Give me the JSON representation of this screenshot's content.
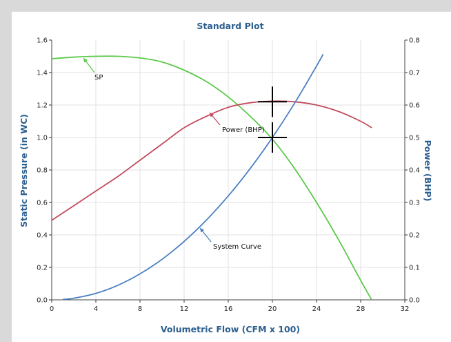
{
  "chart_data": {
    "type": "line",
    "title": "Standard Plot",
    "xlabel": "Volumetric Flow (CFM x 100)",
    "ylabel": "Static Pressure (in WC)",
    "y2label": "Power (BHP)",
    "xlim": [
      0,
      32
    ],
    "ylim": [
      0,
      1.6
    ],
    "y2lim": [
      0,
      0.8
    ],
    "x_ticks": [
      0,
      4,
      8,
      12,
      16,
      20,
      24,
      28,
      32
    ],
    "y_ticks": [
      0.0,
      0.2,
      0.4,
      0.6,
      0.8,
      1.0,
      1.2,
      1.4,
      1.6
    ],
    "y2_ticks": [
      0.0,
      0.1,
      0.2,
      0.3,
      0.4,
      0.5,
      0.6,
      0.7,
      0.8
    ],
    "grid": true,
    "series": [
      {
        "name": "SP",
        "axis": "left",
        "color": "#5cc84b",
        "x": [
          0,
          2,
          4,
          6,
          8,
          10,
          12,
          14,
          16,
          18,
          20,
          22,
          24,
          26,
          28,
          29
        ],
        "y": [
          1.485,
          1.495,
          1.5,
          1.5,
          1.49,
          1.465,
          1.415,
          1.345,
          1.25,
          1.13,
          0.99,
          0.81,
          0.6,
          0.37,
          0.12,
          0.0
        ]
      },
      {
        "name": "Power (BHP)",
        "axis": "right",
        "color": "#c24a5e",
        "x": [
          0,
          2,
          4,
          6,
          8,
          10,
          12,
          14,
          16,
          18,
          20,
          22,
          24,
          26,
          28,
          29
        ],
        "y": [
          0.245,
          0.29,
          0.335,
          0.38,
          0.43,
          0.48,
          0.53,
          0.565,
          0.593,
          0.607,
          0.612,
          0.61,
          0.6,
          0.58,
          0.55,
          0.53
        ]
      },
      {
        "name": "System Curve",
        "axis": "left",
        "color": "#4a7fc1",
        "x": [
          1,
          2,
          4,
          6,
          8,
          10,
          12,
          14,
          16,
          18,
          20,
          22,
          24,
          24.6
        ],
        "y": [
          0.0025,
          0.01,
          0.04,
          0.09,
          0.16,
          0.25,
          0.36,
          0.49,
          0.64,
          0.81,
          1.0,
          1.21,
          1.44,
          1.513
        ]
      }
    ],
    "crosshairs": [
      {
        "x": 20,
        "y": 1.22
      },
      {
        "x": 20,
        "y": 1.0
      }
    ],
    "annotations": [
      {
        "text": "SP",
        "series": "SP"
      },
      {
        "text": "Power (BHP)",
        "series": "Power (BHP)"
      },
      {
        "text": "System Curve",
        "series": "System Curve"
      }
    ]
  }
}
